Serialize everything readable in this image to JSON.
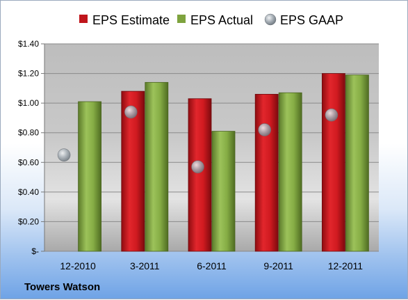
{
  "company": "Towers Watson",
  "colors": {
    "estimate": "#c0151b",
    "actual": "#7ea33e",
    "gaap": "#9aa4ad"
  },
  "chart_data": {
    "type": "bar",
    "categories": [
      "12-2010",
      "3-2011",
      "6-2011",
      "9-2011",
      "12-2011"
    ],
    "series": [
      {
        "name": "EPS Estimate",
        "kind": "bar",
        "values": [
          null,
          1.08,
          1.03,
          1.06,
          1.2
        ]
      },
      {
        "name": "EPS Actual",
        "kind": "bar",
        "values": [
          1.01,
          1.14,
          0.81,
          1.07,
          1.19
        ]
      },
      {
        "name": "EPS GAAP",
        "kind": "scatter",
        "values": [
          0.65,
          0.94,
          0.57,
          0.82,
          0.92
        ]
      }
    ],
    "yticks": [
      {
        "value": 0,
        "label": "$-"
      },
      {
        "value": 0.2,
        "label": "$0.20"
      },
      {
        "value": 0.4,
        "label": "$0.40"
      },
      {
        "value": 0.6,
        "label": "$0.60"
      },
      {
        "value": 0.8,
        "label": "$0.80"
      },
      {
        "value": 1.0,
        "label": "$1.00"
      },
      {
        "value": 1.2,
        "label": "$1.20"
      },
      {
        "value": 1.4,
        "label": "$1.40"
      }
    ],
    "ylim": [
      0,
      1.4
    ],
    "grid": true,
    "legend": "top"
  }
}
